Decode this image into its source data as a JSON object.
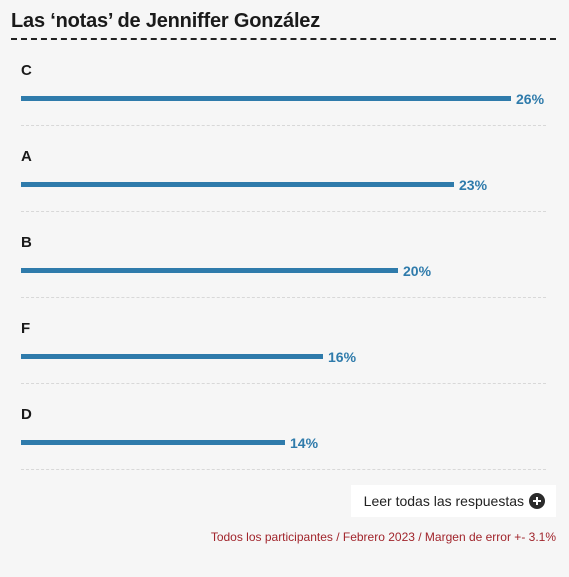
{
  "header": {
    "title": "Las ‘notas’ de Jenniffer González"
  },
  "chart_data": {
    "type": "bar",
    "orientation": "horizontal",
    "categories": [
      "C",
      "A",
      "B",
      "F",
      "D"
    ],
    "values": [
      26,
      23,
      20,
      16,
      14
    ],
    "value_labels": [
      "26%",
      "23%",
      "20%",
      "16%",
      "14%"
    ],
    "unit": "%",
    "xlim": [
      0,
      26
    ],
    "bar_color": "#2f7bab",
    "grid": false,
    "legend": "none"
  },
  "actions": {
    "read_more_label": "Leer todas las respuestas",
    "read_more_icon": "plus-circle-icon"
  },
  "footnote": "Todos los participantes / Febrero 2023 / Margen de error +- 3.1%",
  "colors": {
    "accent": "#2f7bab",
    "footnote": "#a1252c",
    "title": "#1a1a1a",
    "background": "#f6f6f6"
  }
}
